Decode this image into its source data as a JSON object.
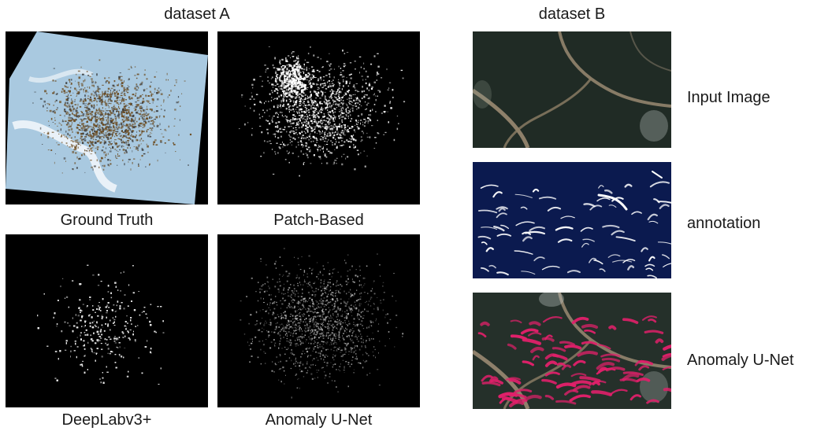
{
  "figure": {
    "group_a": {
      "title": "dataset A",
      "panels": [
        {
          "label": "Ground Truth"
        },
        {
          "label": "Patch-Based"
        },
        {
          "label": "DeepLabv3+"
        },
        {
          "label": "Anomaly U-Net"
        }
      ]
    },
    "group_b": {
      "title": "dataset B",
      "rows": [
        {
          "label": "Input Image"
        },
        {
          "label": "annotation"
        },
        {
          "label": "Anomaly U-Net"
        }
      ]
    }
  },
  "colors": {
    "black_bg": "#000000",
    "gt_light_blue": "#a9c9e0",
    "gt_brown": "#7a5a2a",
    "terrain_dark": "#25302a",
    "river_tan": "#9a8a72",
    "annotation_navy": "#0b1a4f",
    "prediction_magenta": "#e0206a"
  }
}
